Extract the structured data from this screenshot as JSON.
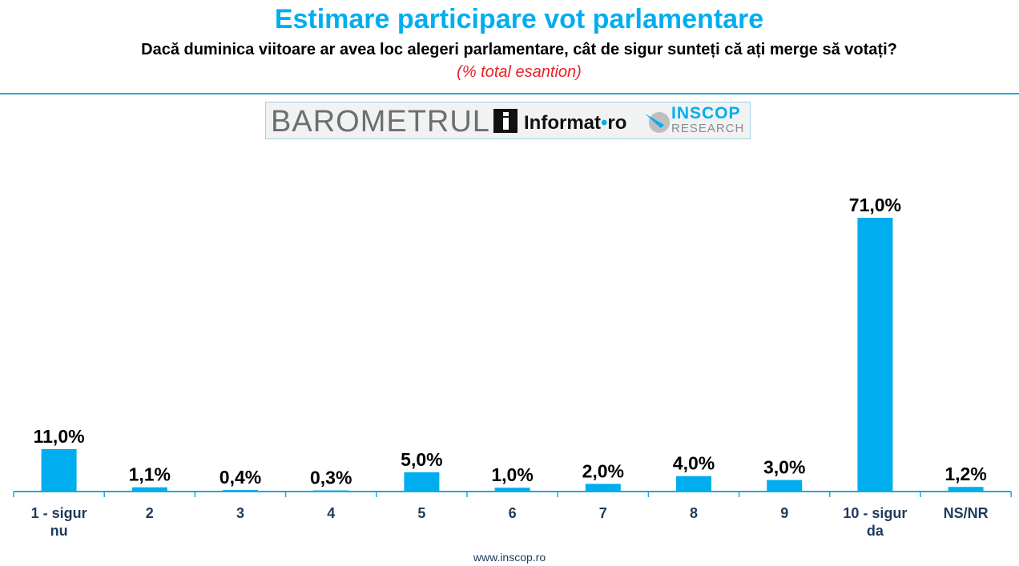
{
  "header": {
    "title": "Estimare participare vot parlamentare",
    "subtitle": "Dacă duminica viitoare ar avea loc alegeri parlamentare, cât de sigur sunteți că ați merge să votați?",
    "note": "(% total esantion)"
  },
  "logo": {
    "barometrul": "BAROMETRUL",
    "informat_name": "Informat",
    "informat_dot": "•",
    "informat_tld": "ro",
    "inscop": "INSCOP",
    "research": "RESEARCH"
  },
  "footer": {
    "url": "www.inscop.ro"
  },
  "colors": {
    "title": "#00aeef",
    "bar": "#00aeef",
    "category_label": "#1f3b5c",
    "note": "#e8202a"
  },
  "chart_data": {
    "type": "bar",
    "categories": [
      "1 - sigur nu",
      "2",
      "3",
      "4",
      "5",
      "6",
      "7",
      "8",
      "9",
      "10 - sigur da",
      "NS/NR"
    ],
    "category_lines": [
      [
        "1 - sigur",
        "nu"
      ],
      [
        "2"
      ],
      [
        "3"
      ],
      [
        "4"
      ],
      [
        "5"
      ],
      [
        "6"
      ],
      [
        "7"
      ],
      [
        "8"
      ],
      [
        "9"
      ],
      [
        "10 - sigur",
        "da"
      ],
      [
        "NS/NR"
      ]
    ],
    "values": [
      11.0,
      1.1,
      0.4,
      0.3,
      5.0,
      1.0,
      2.0,
      4.0,
      3.0,
      71.0,
      1.2
    ],
    "value_labels": [
      "11,0%",
      "1,1%",
      "0,4%",
      "0,3%",
      "5,0%",
      "1,0%",
      "2,0%",
      "4,0%",
      "3,0%",
      "71,0%",
      "1,2%"
    ],
    "ylim": [
      0,
      71
    ],
    "grid": false,
    "legend": "none"
  }
}
